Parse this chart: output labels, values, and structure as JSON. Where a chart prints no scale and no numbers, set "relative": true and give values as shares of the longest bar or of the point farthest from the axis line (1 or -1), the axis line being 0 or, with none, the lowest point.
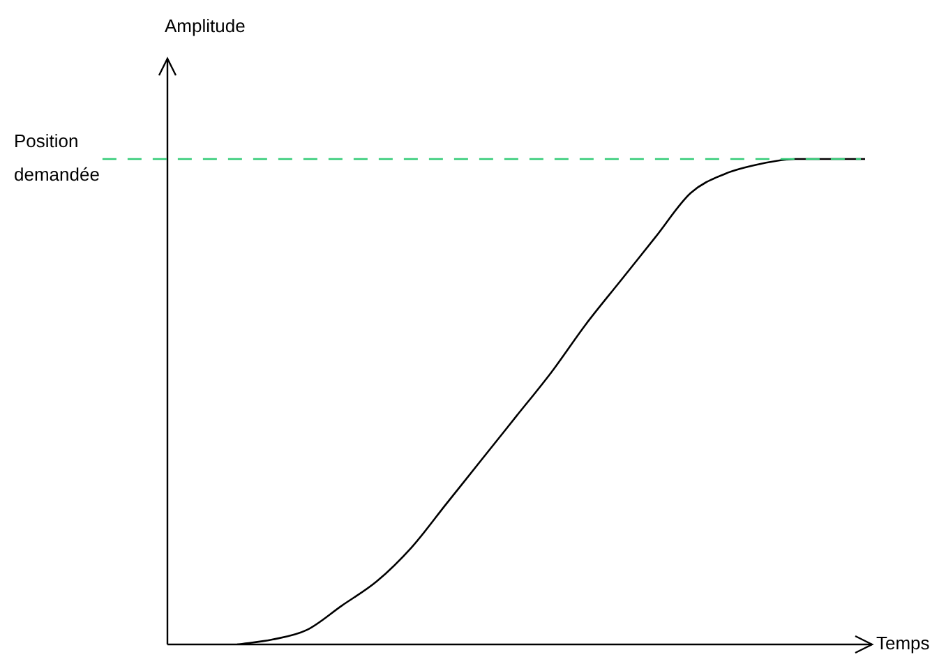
{
  "chart_data": {
    "type": "line",
    "relative": true,
    "xlabel": "Temps",
    "annotations": [
      "Amplitude"
    ],
    "categories": [
      null,
      null,
      null,
      null,
      null,
      null,
      null,
      null,
      null,
      null,
      null,
      null,
      null,
      null,
      null,
      null,
      null,
      null,
      null,
      null,
      null
    ],
    "series": [
      {
        "color": "#000000",
        "values": [
          null,
          null,
          0,
          0.01,
          0.03,
          0.08,
          0.13,
          0.2,
          0.29,
          0.38,
          0.47,
          0.56,
          0.66,
          0.75,
          0.84,
          0.93,
          0.97,
          0.99,
          1,
          1,
          1
        ]
      }
    ],
    "ref_lines": [
      {
        "axis": "y",
        "value": 1,
        "label": "Position demandée",
        "color": "#33cc77",
        "line_style": "dashed"
      }
    ],
    "legend": false,
    "marker": "none",
    "line_style": "solid"
  }
}
